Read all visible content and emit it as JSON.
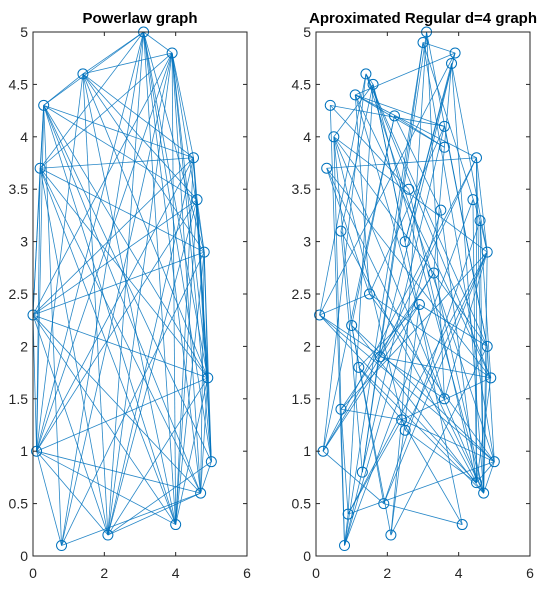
{
  "figure": {
    "edge_color": "#0072BD",
    "node_color": "#0072BD",
    "axis_color": "#262626",
    "background": "#ffffff"
  },
  "chart_data": [
    {
      "type": "scatter",
      "title": "Powerlaw graph",
      "xlabel": "",
      "ylabel": "",
      "xlim": [
        0,
        6
      ],
      "ylim": [
        0,
        5
      ],
      "xticks": [
        "0",
        "2",
        "4",
        "6"
      ],
      "yticks": [
        "0",
        "0.5",
        "1",
        "1.5",
        "2",
        "2.5",
        "3",
        "3.5",
        "4",
        "4.5",
        "5"
      ],
      "grid": false,
      "edge_color": "#0072BD",
      "nodes": [
        {
          "x": 3.1,
          "y": 5.0
        },
        {
          "x": 3.9,
          "y": 4.8
        },
        {
          "x": 1.4,
          "y": 4.6
        },
        {
          "x": 0.3,
          "y": 4.3
        },
        {
          "x": 4.5,
          "y": 3.8
        },
        {
          "x": 0.2,
          "y": 3.7
        },
        {
          "x": 4.6,
          "y": 3.4
        },
        {
          "x": 4.8,
          "y": 2.9
        },
        {
          "x": 0.0,
          "y": 2.3
        },
        {
          "x": 4.9,
          "y": 1.7
        },
        {
          "x": 0.1,
          "y": 1.0
        },
        {
          "x": 5.0,
          "y": 0.9
        },
        {
          "x": 4.7,
          "y": 0.6
        },
        {
          "x": 4.0,
          "y": 0.3
        },
        {
          "x": 2.1,
          "y": 0.2
        },
        {
          "x": 0.8,
          "y": 0.1
        }
      ]
    },
    {
      "type": "scatter",
      "title": "Aproximated Regular d=4 graph",
      "xlabel": "",
      "ylabel": "",
      "xlim": [
        0,
        6
      ],
      "ylim": [
        0,
        5
      ],
      "xticks": [
        "0",
        "2",
        "4",
        "6"
      ],
      "yticks": [
        "0",
        "0.5",
        "1",
        "1.5",
        "2",
        "2.5",
        "3",
        "3.5",
        "4",
        "4.5",
        "5"
      ],
      "grid": false,
      "edge_color": "#0072BD",
      "nodes": [
        {
          "x": 3.1,
          "y": 5.0
        },
        {
          "x": 3.0,
          "y": 4.9
        },
        {
          "x": 3.9,
          "y": 4.8
        },
        {
          "x": 3.8,
          "y": 4.7
        },
        {
          "x": 1.4,
          "y": 4.6
        },
        {
          "x": 1.6,
          "y": 4.5
        },
        {
          "x": 1.1,
          "y": 4.4
        },
        {
          "x": 0.4,
          "y": 4.3
        },
        {
          "x": 2.2,
          "y": 4.2
        },
        {
          "x": 3.6,
          "y": 4.1
        },
        {
          "x": 0.5,
          "y": 4.0
        },
        {
          "x": 4.5,
          "y": 3.8
        },
        {
          "x": 3.6,
          "y": 3.9
        },
        {
          "x": 0.3,
          "y": 3.7
        },
        {
          "x": 2.6,
          "y": 3.5
        },
        {
          "x": 4.4,
          "y": 3.4
        },
        {
          "x": 3.5,
          "y": 3.3
        },
        {
          "x": 4.6,
          "y": 3.2
        },
        {
          "x": 0.7,
          "y": 3.1
        },
        {
          "x": 2.5,
          "y": 3.0
        },
        {
          "x": 4.8,
          "y": 2.9
        },
        {
          "x": 3.3,
          "y": 2.7
        },
        {
          "x": 1.5,
          "y": 2.5
        },
        {
          "x": 2.9,
          "y": 2.4
        },
        {
          "x": 0.1,
          "y": 2.3
        },
        {
          "x": 1.0,
          "y": 2.2
        },
        {
          "x": 4.8,
          "y": 2.0
        },
        {
          "x": 1.8,
          "y": 1.9
        },
        {
          "x": 1.2,
          "y": 1.8
        },
        {
          "x": 4.9,
          "y": 1.7
        },
        {
          "x": 3.6,
          "y": 1.5
        },
        {
          "x": 0.7,
          "y": 1.4
        },
        {
          "x": 2.4,
          "y": 1.3
        },
        {
          "x": 2.5,
          "y": 1.2
        },
        {
          "x": 0.2,
          "y": 1.0
        },
        {
          "x": 5.0,
          "y": 0.9
        },
        {
          "x": 1.3,
          "y": 0.8
        },
        {
          "x": 4.5,
          "y": 0.7
        },
        {
          "x": 4.7,
          "y": 0.6
        },
        {
          "x": 1.9,
          "y": 0.5
        },
        {
          "x": 0.9,
          "y": 0.4
        },
        {
          "x": 4.1,
          "y": 0.3
        },
        {
          "x": 2.1,
          "y": 0.2
        },
        {
          "x": 0.8,
          "y": 0.1
        }
      ]
    }
  ]
}
